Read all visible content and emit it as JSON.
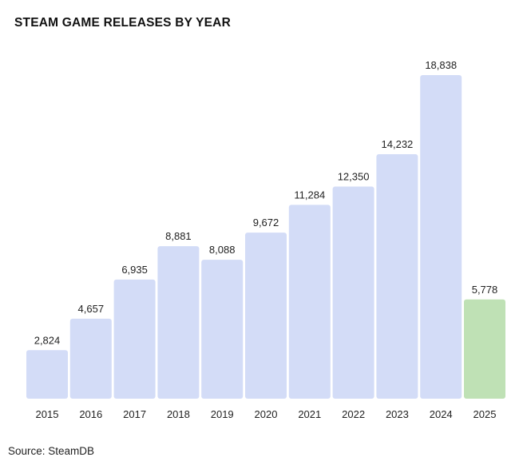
{
  "title": "STEAM GAME RELEASES BY YEAR",
  "source": "Source: SteamDB",
  "chart_data": {
    "type": "bar",
    "title": "STEAM GAME RELEASES BY YEAR",
    "xlabel": "",
    "ylabel": "",
    "categories": [
      "2015",
      "2016",
      "2017",
      "2018",
      "2019",
      "2020",
      "2021",
      "2022",
      "2023",
      "2024",
      "2025"
    ],
    "values": [
      2824,
      4657,
      6935,
      8881,
      8088,
      9672,
      11284,
      12350,
      14232,
      18838,
      5778
    ],
    "labels": [
      "2,824",
      "4,657",
      "6,935",
      "8,881",
      "8,088",
      "9,672",
      "11,284",
      "12,350",
      "14,232",
      "18,838",
      "5,778"
    ],
    "ylim": [
      0,
      18838
    ],
    "grid": false,
    "colors": {
      "default_bar": "#d3dcf7",
      "highlight_bar": "#bfe1b5",
      "highlight_category": "2025"
    }
  }
}
